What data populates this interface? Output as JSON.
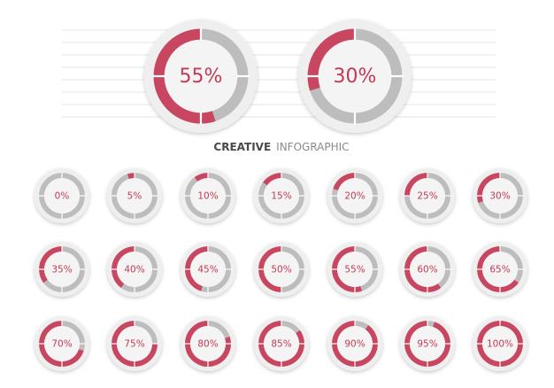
{
  "colors": {
    "accent": "#c8465f",
    "track": "#bdbdbd",
    "disc": "#efefef",
    "label": "#c33a54",
    "lines": "#e6e6e6"
  },
  "title": {
    "bold": "CREATIVE",
    "light": "INFOGRAPHIC"
  },
  "large_gauges": [
    {
      "label": "55%",
      "value": 55
    },
    {
      "label": "30%",
      "value": 30
    }
  ],
  "small_gauges": [
    {
      "label": "0%",
      "value": 0
    },
    {
      "label": "5%",
      "value": 5
    },
    {
      "label": "10%",
      "value": 10
    },
    {
      "label": "15%",
      "value": 15
    },
    {
      "label": "20%",
      "value": 20
    },
    {
      "label": "25%",
      "value": 25
    },
    {
      "label": "30%",
      "value": 30
    },
    {
      "label": "35%",
      "value": 35
    },
    {
      "label": "40%",
      "value": 40
    },
    {
      "label": "45%",
      "value": 45
    },
    {
      "label": "50%",
      "value": 50
    },
    {
      "label": "55%",
      "value": 55
    },
    {
      "label": "60%",
      "value": 60
    },
    {
      "label": "65%",
      "value": 65
    },
    {
      "label": "70%",
      "value": 70
    },
    {
      "label": "75%",
      "value": 75
    },
    {
      "label": "80%",
      "value": 80
    },
    {
      "label": "85%",
      "value": 85
    },
    {
      "label": "90%",
      "value": 90
    },
    {
      "label": "95%",
      "value": 95
    },
    {
      "label": "100%",
      "value": 100
    }
  ]
}
